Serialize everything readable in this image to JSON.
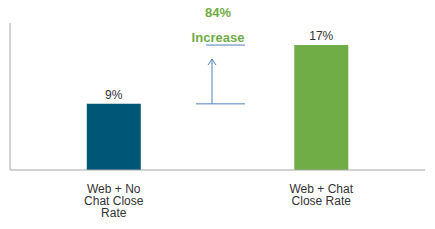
{
  "chart_data": {
    "type": "bar",
    "categories": [
      "Web + No Chat Close Rate",
      "Web + Chat Close Rate"
    ],
    "values": [
      9,
      17
    ],
    "value_labels": [
      "9%",
      "17%"
    ],
    "colors": [
      "#005677",
      "#70AD47"
    ],
    "ylim": [
      0,
      20
    ],
    "data_labels": true,
    "tick_labels": "x",
    "grid": false,
    "annotations": [
      "84% Increase"
    ]
  }
}
